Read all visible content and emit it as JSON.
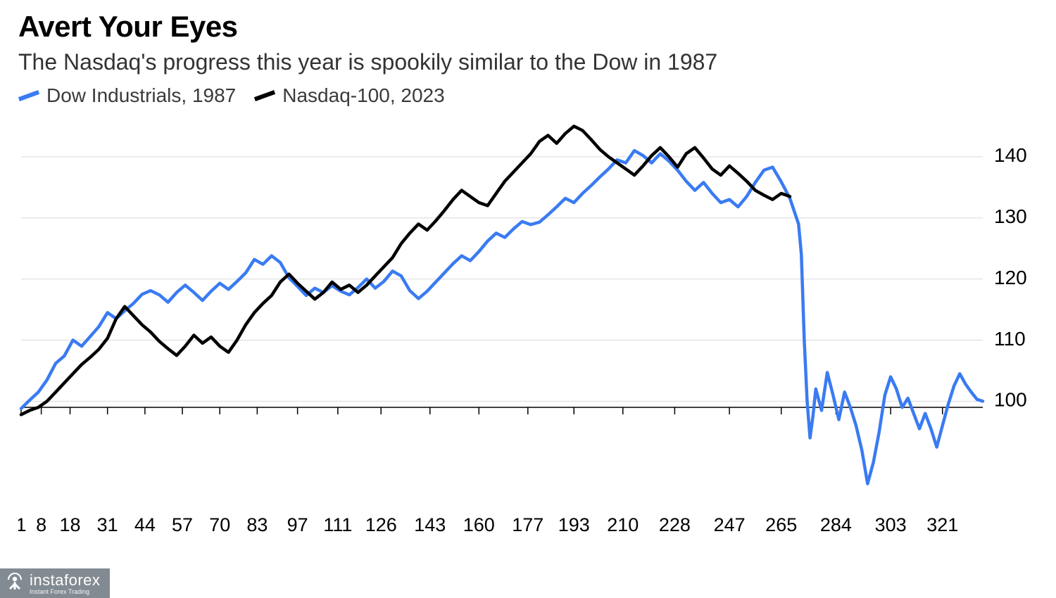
{
  "header": {
    "title": "Avert Your Eyes",
    "subtitle": "The Nasdaq's progress this year is spookily similar to the Dow in 1987"
  },
  "legend": {
    "items": [
      {
        "label": "Dow Industrials, 1987",
        "color": "#3a7bf2"
      },
      {
        "label": "Nasdaq-100, 2023",
        "color": "#000000"
      }
    ]
  },
  "chart": {
    "type": "line",
    "background_color": "#ffffff",
    "grid_color": "#d9d9d9",
    "axis_color": "#000000",
    "line_width": 4.5,
    "xlim": [
      1,
      335
    ],
    "ylim": [
      83,
      147
    ],
    "x_ticks": [
      1,
      8,
      18,
      31,
      44,
      57,
      70,
      83,
      97,
      111,
      126,
      143,
      160,
      177,
      193,
      210,
      228,
      247,
      265,
      284,
      303,
      321
    ],
    "y_ticks": [
      100,
      110,
      120,
      130,
      140
    ],
    "label_fontsize": 28,
    "series": [
      {
        "name": "Dow Industrials, 1987",
        "color": "#3a7bf2",
        "points": [
          [
            1,
            98.8
          ],
          [
            4,
            100.2
          ],
          [
            7,
            101.5
          ],
          [
            10,
            103.5
          ],
          [
            13,
            106.2
          ],
          [
            16,
            107.4
          ],
          [
            19,
            110.0
          ],
          [
            22,
            109.0
          ],
          [
            25,
            110.6
          ],
          [
            28,
            112.2
          ],
          [
            31,
            114.5
          ],
          [
            34,
            113.5
          ],
          [
            37,
            114.8
          ],
          [
            40,
            116.0
          ],
          [
            43,
            117.5
          ],
          [
            46,
            118.1
          ],
          [
            49,
            117.4
          ],
          [
            52,
            116.2
          ],
          [
            55,
            117.8
          ],
          [
            58,
            119.0
          ],
          [
            61,
            117.8
          ],
          [
            64,
            116.5
          ],
          [
            67,
            118.0
          ],
          [
            70,
            119.3
          ],
          [
            73,
            118.3
          ],
          [
            76,
            119.6
          ],
          [
            79,
            121.0
          ],
          [
            82,
            123.2
          ],
          [
            85,
            122.4
          ],
          [
            88,
            123.8
          ],
          [
            91,
            122.7
          ],
          [
            94,
            120.2
          ],
          [
            97,
            118.8
          ],
          [
            100,
            117.3
          ],
          [
            103,
            118.5
          ],
          [
            106,
            117.8
          ],
          [
            109,
            118.9
          ],
          [
            112,
            118.0
          ],
          [
            115,
            117.4
          ],
          [
            118,
            118.6
          ],
          [
            121,
            120.0
          ],
          [
            124,
            118.5
          ],
          [
            127,
            119.6
          ],
          [
            130,
            121.3
          ],
          [
            133,
            120.5
          ],
          [
            136,
            118.1
          ],
          [
            139,
            116.8
          ],
          [
            142,
            118.0
          ],
          [
            145,
            119.5
          ],
          [
            148,
            121.0
          ],
          [
            151,
            122.5
          ],
          [
            154,
            123.8
          ],
          [
            157,
            123.0
          ],
          [
            160,
            124.5
          ],
          [
            163,
            126.2
          ],
          [
            166,
            127.5
          ],
          [
            169,
            126.8
          ],
          [
            172,
            128.2
          ],
          [
            175,
            129.4
          ],
          [
            178,
            128.9
          ],
          [
            181,
            129.3
          ],
          [
            184,
            130.5
          ],
          [
            187,
            131.8
          ],
          [
            190,
            133.2
          ],
          [
            193,
            132.5
          ],
          [
            196,
            134.0
          ],
          [
            199,
            135.3
          ],
          [
            202,
            136.7
          ],
          [
            205,
            138.0
          ],
          [
            208,
            139.5
          ],
          [
            211,
            139.0
          ],
          [
            214,
            141.0
          ],
          [
            217,
            140.2
          ],
          [
            220,
            139.0
          ],
          [
            223,
            140.5
          ],
          [
            226,
            139.3
          ],
          [
            229,
            137.8
          ],
          [
            232,
            136.0
          ],
          [
            235,
            134.5
          ],
          [
            238,
            135.8
          ],
          [
            241,
            134.0
          ],
          [
            244,
            132.5
          ],
          [
            247,
            133.0
          ],
          [
            250,
            131.8
          ],
          [
            253,
            133.5
          ],
          [
            256,
            135.8
          ],
          [
            259,
            137.8
          ],
          [
            262,
            138.3
          ],
          [
            265,
            135.9
          ],
          [
            268,
            133.2
          ],
          [
            271,
            129.0
          ],
          [
            272,
            124.0
          ],
          [
            273,
            110.0
          ],
          [
            274,
            100.0
          ],
          [
            275,
            94.0
          ],
          [
            276,
            97.5
          ],
          [
            277,
            102.0
          ],
          [
            279,
            98.5
          ],
          [
            281,
            104.7
          ],
          [
            283,
            101.0
          ],
          [
            285,
            97.0
          ],
          [
            287,
            101.5
          ],
          [
            289,
            99.0
          ],
          [
            291,
            96.0
          ],
          [
            293,
            92.0
          ],
          [
            295,
            86.5
          ],
          [
            297,
            90.0
          ],
          [
            299,
            95.0
          ],
          [
            301,
            101.0
          ],
          [
            303,
            104.0
          ],
          [
            305,
            102.0
          ],
          [
            307,
            99.0
          ],
          [
            309,
            100.5
          ],
          [
            311,
            98.0
          ],
          [
            313,
            95.5
          ],
          [
            315,
            98.0
          ],
          [
            317,
            95.5
          ],
          [
            319,
            92.5
          ],
          [
            321,
            96.0
          ],
          [
            323,
            99.5
          ],
          [
            325,
            102.5
          ],
          [
            327,
            104.5
          ],
          [
            329,
            102.8
          ],
          [
            331,
            101.5
          ],
          [
            333,
            100.3
          ],
          [
            335,
            100.0
          ]
        ]
      },
      {
        "name": "Nasdaq-100, 2023",
        "color": "#000000",
        "points": [
          [
            1,
            97.8
          ],
          [
            4,
            98.5
          ],
          [
            7,
            99.0
          ],
          [
            10,
            100.0
          ],
          [
            13,
            101.5
          ],
          [
            16,
            103.0
          ],
          [
            19,
            104.5
          ],
          [
            22,
            106.0
          ],
          [
            25,
            107.2
          ],
          [
            28,
            108.5
          ],
          [
            31,
            110.3
          ],
          [
            34,
            113.5
          ],
          [
            37,
            115.5
          ],
          [
            40,
            114.0
          ],
          [
            43,
            112.5
          ],
          [
            46,
            111.3
          ],
          [
            49,
            109.8
          ],
          [
            52,
            108.6
          ],
          [
            55,
            107.5
          ],
          [
            58,
            109.0
          ],
          [
            61,
            110.8
          ],
          [
            64,
            109.5
          ],
          [
            67,
            110.5
          ],
          [
            70,
            109.0
          ],
          [
            73,
            108.0
          ],
          [
            76,
            110.0
          ],
          [
            79,
            112.5
          ],
          [
            82,
            114.5
          ],
          [
            85,
            116.0
          ],
          [
            88,
            117.3
          ],
          [
            91,
            119.5
          ],
          [
            94,
            120.8
          ],
          [
            97,
            119.3
          ],
          [
            100,
            118.0
          ],
          [
            103,
            116.7
          ],
          [
            106,
            117.8
          ],
          [
            109,
            119.5
          ],
          [
            112,
            118.3
          ],
          [
            115,
            119.0
          ],
          [
            118,
            117.8
          ],
          [
            121,
            119.0
          ],
          [
            124,
            120.5
          ],
          [
            127,
            122.0
          ],
          [
            130,
            123.5
          ],
          [
            133,
            125.8
          ],
          [
            136,
            127.5
          ],
          [
            139,
            129.0
          ],
          [
            142,
            128.0
          ],
          [
            145,
            129.5
          ],
          [
            148,
            131.2
          ],
          [
            151,
            133.0
          ],
          [
            154,
            134.5
          ],
          [
            157,
            133.5
          ],
          [
            160,
            132.5
          ],
          [
            163,
            132.0
          ],
          [
            166,
            134.0
          ],
          [
            169,
            136.0
          ],
          [
            172,
            137.5
          ],
          [
            175,
            139.0
          ],
          [
            178,
            140.5
          ],
          [
            181,
            142.5
          ],
          [
            184,
            143.5
          ],
          [
            187,
            142.2
          ],
          [
            190,
            143.8
          ],
          [
            193,
            145.0
          ],
          [
            196,
            144.3
          ],
          [
            199,
            142.8
          ],
          [
            202,
            141.2
          ],
          [
            205,
            140.0
          ],
          [
            208,
            139.0
          ],
          [
            211,
            138.0
          ],
          [
            214,
            137.0
          ],
          [
            217,
            138.5
          ],
          [
            220,
            140.2
          ],
          [
            223,
            141.5
          ],
          [
            226,
            140.0
          ],
          [
            229,
            138.3
          ],
          [
            232,
            140.5
          ],
          [
            235,
            141.5
          ],
          [
            238,
            139.8
          ],
          [
            241,
            138.0
          ],
          [
            244,
            137.0
          ],
          [
            247,
            138.5
          ],
          [
            250,
            137.3
          ],
          [
            253,
            136.0
          ],
          [
            256,
            134.5
          ],
          [
            259,
            133.7
          ],
          [
            262,
            133.0
          ],
          [
            265,
            134.0
          ],
          [
            268,
            133.5
          ]
        ]
      }
    ]
  },
  "watermark": {
    "brand": "instaforex",
    "tagline": "Instant Forex Trading"
  }
}
